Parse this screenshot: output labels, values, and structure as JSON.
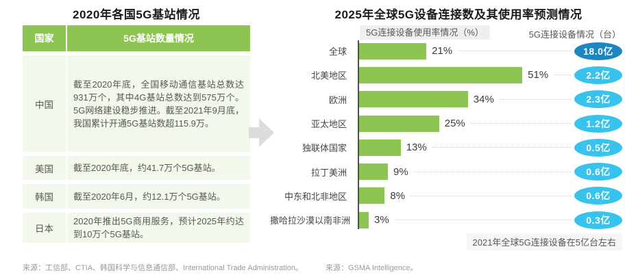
{
  "left_panel": {
    "title": "2020年各国5G基站情况",
    "table": {
      "headers": [
        "国家",
        "5G基站数量情况"
      ],
      "rows": [
        {
          "country": "中国",
          "detail": "截至2020年底，全国移动通信基站总数达931万个，其中4G基站总数达到575万个。5G网络建设稳步推进。截至2021年9月底，我国累计开通5G基站数超115.9万。"
        },
        {
          "country": "美国",
          "detail": "截至2020年底，约41.7万个5G基站。"
        },
        {
          "country": "韩国",
          "detail": "截至2020年6月，约12.1万个5G基站。"
        },
        {
          "country": "日本",
          "detail": "2020年推出5G商用服务，预计2025年约达到10万个5G基站。"
        }
      ]
    },
    "source": "来源：工信部、CTIA、韩国科学与信息通信部、International Trade Administration。"
  },
  "right_panel": {
    "title": "2025年全球5G设备连接数及其使用率预测情况",
    "col_header_left": "5G连接设备使用率情况（%）",
    "col_header_right": "5G连接设备情况（台）",
    "note": "2021年全球5G连接设备在5亿台左右",
    "source": "来源：GSMA Intelligence。"
  },
  "chart_data": {
    "type": "bar",
    "orientation": "horizontal",
    "title": "2025年全球5G设备连接数及其使用率预测情况",
    "categories": [
      "全球",
      "北美地区",
      "欧洲",
      "亚太地区",
      "独联体国家",
      "拉丁美洲",
      "中东和北非地区",
      "撒哈拉沙漠以南非洲"
    ],
    "series": [
      {
        "name": "5G连接设备使用率情况（%）",
        "unit": "%",
        "values": [
          21,
          51,
          34,
          25,
          13,
          9,
          8,
          3
        ]
      },
      {
        "name": "5G连接设备情况（台）",
        "unit": "亿台",
        "values": [
          "18.0亿",
          "2.2亿",
          "2.3亿",
          "1.2亿",
          "0.5亿",
          "0.6亿",
          "0.6亿",
          "0.3亿"
        ]
      }
    ],
    "xlim": [
      0,
      60
    ],
    "grid": false,
    "legend_position": "top",
    "annotations": [
      "2021年全球5G连接设备在5亿台左右"
    ]
  },
  "colors": {
    "bar_green": "#8dc552",
    "table_header_green": "#8dc552",
    "table_row_bg": "#f2f8eb",
    "badge_highlight": "#1c86c3",
    "badge_default": "#38c2ee",
    "arrow_gray": "#dcdcdc"
  }
}
